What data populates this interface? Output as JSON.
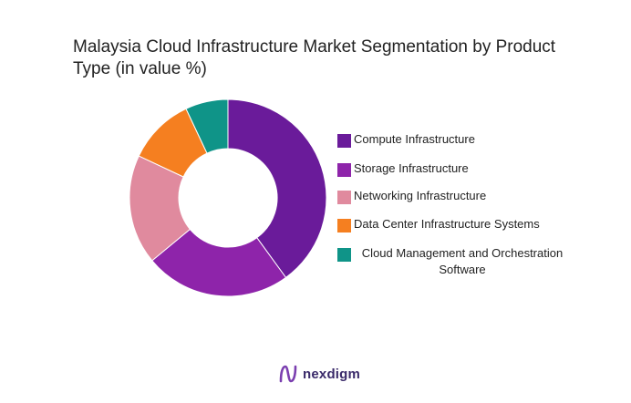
{
  "chart_data": {
    "type": "pie",
    "variant": "donut",
    "title": "Malaysia Cloud Infrastructure Market Segmentation by Product Type (in value %)",
    "legend_position": "right",
    "series": [
      {
        "label": "Compute Infrastructure",
        "value": 40,
        "color": "#6a1b9a"
      },
      {
        "label": "Storage Infrastructure",
        "value": 24,
        "color": "#8e24aa"
      },
      {
        "label": "Networking Infrastructure",
        "value": 18,
        "color": "#e08a9e"
      },
      {
        "label": "Data Center Infrastructure Systems",
        "value": 11,
        "color": "#f57f20"
      },
      {
        "label": "Cloud Management and Orchestration Software",
        "value": 7,
        "color": "#0f9488"
      }
    ]
  },
  "brand": {
    "name": "nexdigm",
    "icon": "nexdigm-logo-icon",
    "color": "#3a2a6a"
  }
}
